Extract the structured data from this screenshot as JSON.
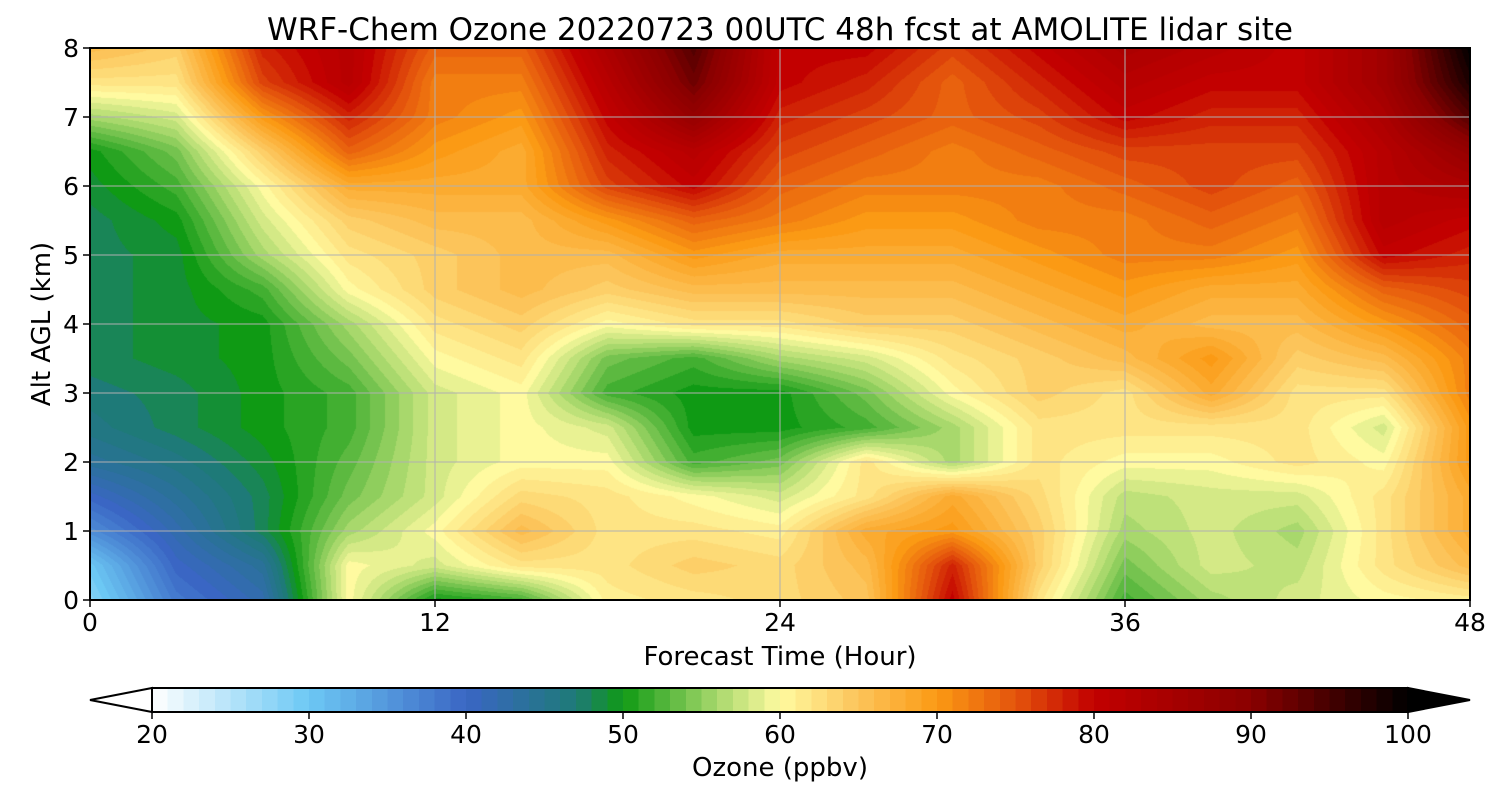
{
  "chart_data": {
    "type": "heatmap",
    "title": "WRF-Chem Ozone  20220723 00UTC 48h fcst at AMOLITE lidar site",
    "xlabel": "Forecast Time (Hour)",
    "ylabel": "Alt AGL (km)",
    "xlim": [
      0,
      48
    ],
    "ylim": [
      0,
      8
    ],
    "xticks": [
      "0",
      "12",
      "24",
      "36",
      "48"
    ],
    "yticks": [
      "0",
      "1",
      "2",
      "3",
      "4",
      "5",
      "6",
      "7",
      "8"
    ],
    "grid": true,
    "x": [
      0,
      3,
      6,
      9,
      12,
      15,
      18,
      21,
      24,
      27,
      30,
      33,
      36,
      39,
      42,
      45,
      48
    ],
    "y": [
      0,
      0.5,
      1,
      1.5,
      2,
      2.5,
      3,
      3.5,
      4,
      4.5,
      5,
      5.5,
      6,
      6.5,
      7,
      7.5,
      8
    ],
    "z": [
      [
        28,
        38,
        42,
        60,
        50,
        52,
        61,
        62,
        63,
        65,
        80,
        62,
        52,
        56,
        58,
        60,
        61
      ],
      [
        30,
        40,
        44,
        60,
        58,
        62,
        62,
        64,
        63,
        66,
        78,
        64,
        54,
        58,
        57,
        62,
        66
      ],
      [
        36,
        42,
        48,
        56,
        60,
        66,
        62,
        62,
        61,
        68,
        70,
        64,
        56,
        58,
        56,
        62,
        68
      ],
      [
        40,
        44,
        48,
        54,
        58,
        63,
        62,
        60,
        58,
        62,
        68,
        63,
        57,
        58,
        58,
        62,
        68
      ],
      [
        44,
        46,
        49,
        53,
        58,
        60,
        60,
        52,
        54,
        62,
        56,
        62,
        60,
        60,
        62,
        60,
        70
      ],
      [
        46,
        48,
        50,
        52,
        58,
        60,
        58,
        50,
        50,
        52,
        56,
        62,
        62,
        62,
        62,
        58,
        70
      ],
      [
        47,
        48,
        50,
        52,
        58,
        60,
        52,
        50,
        50,
        54,
        60,
        64,
        62,
        68,
        62,
        62,
        72
      ],
      [
        48,
        49,
        50,
        54,
        60,
        62,
        54,
        52,
        56,
        58,
        62,
        64,
        66,
        70,
        64,
        66,
        72
      ],
      [
        48,
        49,
        50,
        56,
        62,
        64,
        60,
        62,
        62,
        64,
        64,
        66,
        68,
        66,
        66,
        70,
        74
      ],
      [
        48,
        49,
        52,
        60,
        64,
        66,
        64,
        66,
        66,
        66,
        66,
        68,
        70,
        68,
        68,
        74,
        76
      ],
      [
        48,
        49,
        56,
        62,
        64,
        66,
        66,
        70,
        68,
        68,
        68,
        70,
        72,
        72,
        70,
        80,
        78
      ],
      [
        48,
        50,
        58,
        64,
        66,
        66,
        70,
        74,
        72,
        70,
        70,
        72,
        72,
        74,
        72,
        82,
        80
      ],
      [
        49,
        52,
        60,
        68,
        68,
        68,
        76,
        80,
        74,
        72,
        72,
        72,
        74,
        76,
        74,
        82,
        84
      ],
      [
        50,
        54,
        64,
        74,
        70,
        68,
        78,
        82,
        76,
        74,
        72,
        74,
        76,
        76,
        76,
        82,
        88
      ],
      [
        56,
        58,
        70,
        78,
        72,
        70,
        80,
        88,
        78,
        76,
        74,
        76,
        80,
        78,
        78,
        84,
        94
      ],
      [
        62,
        62,
        76,
        82,
        72,
        72,
        82,
        92,
        80,
        78,
        74,
        78,
        82,
        80,
        80,
        86,
        98
      ],
      [
        66,
        64,
        78,
        82,
        74,
        74,
        84,
        94,
        80,
        80,
        76,
        80,
        84,
        82,
        80,
        86,
        100
      ]
    ],
    "colorbar": {
      "label": "Ozone  (ppbv)",
      "min": 20,
      "max": 100,
      "ticks": [
        "20",
        "30",
        "40",
        "50",
        "60",
        "70",
        "80",
        "90",
        "100"
      ],
      "extend": "both",
      "colors": [
        {
          "v": 20,
          "c": "#ffffff"
        },
        {
          "v": 30,
          "c": "#6cc8f4"
        },
        {
          "v": 40,
          "c": "#3a66c4"
        },
        {
          "v": 47,
          "c": "#1e7a78"
        },
        {
          "v": 50,
          "c": "#0f9a14"
        },
        {
          "v": 56,
          "c": "#a8d86c"
        },
        {
          "v": 60,
          "c": "#fffaa0"
        },
        {
          "v": 65,
          "c": "#fcc45a"
        },
        {
          "v": 70,
          "c": "#fb9a14"
        },
        {
          "v": 75,
          "c": "#e4540c"
        },
        {
          "v": 80,
          "c": "#c20000"
        },
        {
          "v": 90,
          "c": "#8a0000"
        },
        {
          "v": 100,
          "c": "#000000"
        }
      ]
    }
  }
}
